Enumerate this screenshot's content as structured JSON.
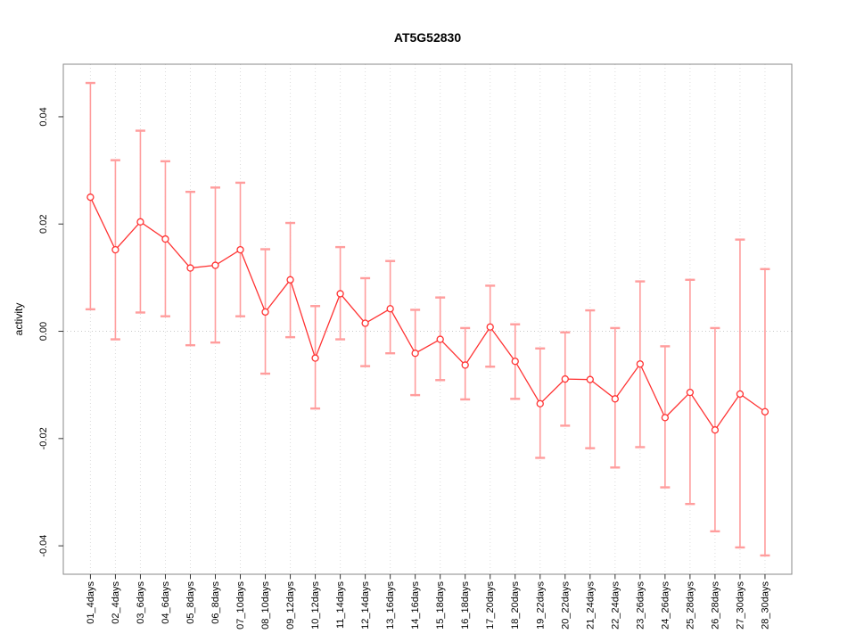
{
  "title": "AT5G52830",
  "chart_data": {
    "type": "line",
    "title": "AT5G52830",
    "xlabel": "",
    "ylabel": "activity",
    "grid": "vertical-dotted",
    "zero_line": true,
    "legend": "none",
    "ylim": [
      -0.0453,
      0.0498
    ],
    "yticks": [
      {
        "value": -0.04,
        "label": "-0.04"
      },
      {
        "value": -0.02,
        "label": "-0.02"
      },
      {
        "value": 0.0,
        "label": "0.00"
      },
      {
        "value": 0.02,
        "label": "0.02"
      },
      {
        "value": 0.04,
        "label": "0.04"
      }
    ],
    "categories": [
      "01_4days",
      "02_4days",
      "03_6days",
      "04_6days",
      "05_8days",
      "06_8days",
      "07_10days",
      "08_10days",
      "09_12days",
      "10_12days",
      "11_14days",
      "12_14days",
      "13_16days",
      "14_16days",
      "15_18days",
      "16_18days",
      "17_20days",
      "18_20days",
      "19_22days",
      "20_22days",
      "21_24days",
      "22_24days",
      "23_26days",
      "24_26days",
      "25_28days",
      "26_28days",
      "27_30days",
      "28_30days"
    ],
    "series": [
      {
        "name": "activity",
        "values": [
          0.025,
          0.0152,
          0.0204,
          0.0172,
          0.0118,
          0.0123,
          0.0152,
          0.0036,
          0.0096,
          -0.005,
          0.007,
          0.0015,
          0.0042,
          -0.0041,
          -0.0015,
          -0.0063,
          0.0008,
          -0.0056,
          -0.0135,
          -0.0089,
          -0.009,
          -0.0126,
          -0.0061,
          -0.0161,
          -0.0114,
          -0.0184,
          -0.0117,
          -0.015
        ],
        "error_upper": [
          0.0463,
          0.0319,
          0.0374,
          0.0317,
          0.026,
          0.0268,
          0.0277,
          0.0153,
          0.0202,
          0.0047,
          0.0157,
          0.0099,
          0.0131,
          0.004,
          0.0063,
          0.0006,
          0.0085,
          0.0013,
          -0.0032,
          -0.0002,
          0.0039,
          0.0006,
          0.0093,
          -0.0028,
          0.0096,
          0.0006,
          0.0171,
          0.0116
        ],
        "error_lower": [
          0.0041,
          -0.0015,
          0.0035,
          0.0028,
          -0.0026,
          -0.0021,
          0.0028,
          -0.0079,
          -0.0011,
          -0.0144,
          -0.0015,
          -0.0065,
          -0.0041,
          -0.0119,
          -0.0091,
          -0.0127,
          -0.0066,
          -0.0126,
          -0.0236,
          -0.0176,
          -0.0218,
          -0.0254,
          -0.0216,
          -0.0291,
          -0.0322,
          -0.0373,
          -0.0403,
          -0.0418
        ]
      }
    ],
    "colors": {
      "point_line": "#ff3333",
      "error_bar": "#ff9d9d",
      "grid": "#dcdcdc",
      "zero_line": "#c9c9c9",
      "box": "#888888",
      "tick": "#333333",
      "text": "#000000",
      "background": "#ffffff"
    }
  }
}
